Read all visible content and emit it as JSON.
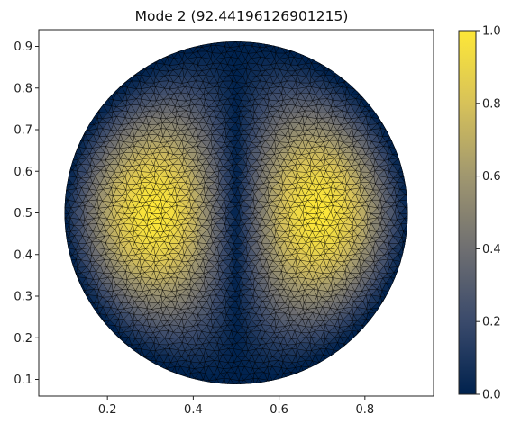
{
  "chart_data": {
    "type": "heatmap",
    "title": "Mode 2 (92.44196126901215)",
    "xlabel": "",
    "ylabel": "",
    "xlim": [
      0.04,
      0.96
    ],
    "ylim": [
      0.06,
      0.94
    ],
    "x_ticks": [
      "0.2",
      "0.4",
      "0.6",
      "0.8"
    ],
    "y_ticks": [
      "0.1",
      "0.2",
      "0.3",
      "0.4",
      "0.5",
      "0.6",
      "0.7",
      "0.8",
      "0.9"
    ],
    "colorbar": {
      "range": [
        0.0,
        1.0
      ],
      "ticks": [
        "0.0",
        "0.2",
        "0.4",
        "0.6",
        "0.8",
        "1.0"
      ],
      "colormap": "cividis",
      "colors": [
        "#00224e",
        "#3a4a6b",
        "#6f6f71",
        "#a0976f",
        "#d7c259",
        "#fde737"
      ]
    },
    "domain": {
      "shape": "disk",
      "center": [
        0.5,
        0.5
      ],
      "radius": 0.4
    },
    "field": "normalized |eigenfunction| of mode 2 with two lobes at x≈0.32 and x≈0.68 and a nodal line at x=0.5",
    "mesh": "triangular finite element mesh, edges drawn in black"
  }
}
